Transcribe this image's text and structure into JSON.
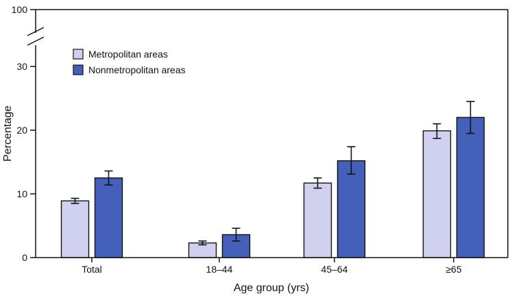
{
  "chart_data": {
    "type": "bar",
    "title": "",
    "xlabel": "Age group (yrs)",
    "ylabel": "Percentage",
    "categories": [
      "Total",
      "18–44",
      "45–64",
      "≥65"
    ],
    "yticks": [
      "0",
      "10",
      "20",
      "30",
      "100"
    ],
    "ylim": [
      0,
      32
    ],
    "y_axis_break": {
      "lower_max": 32,
      "upper_label": 100
    },
    "grid": false,
    "legend_position": "top-left",
    "series": [
      {
        "name": "Metropolitan areas",
        "color": "#d0d1ee",
        "values": [
          8.9,
          2.3,
          11.7,
          19.9
        ],
        "ci_low": [
          8.5,
          2.0,
          10.9,
          18.7
        ],
        "ci_high": [
          9.3,
          2.6,
          12.5,
          21.0
        ]
      },
      {
        "name": "Nonmetropolitan areas",
        "color": "#4560b8",
        "values": [
          12.5,
          3.6,
          15.2,
          22.0
        ],
        "ci_low": [
          11.4,
          2.6,
          13.1,
          19.5
        ],
        "ci_high": [
          13.6,
          4.6,
          17.4,
          24.5
        ]
      }
    ]
  }
}
